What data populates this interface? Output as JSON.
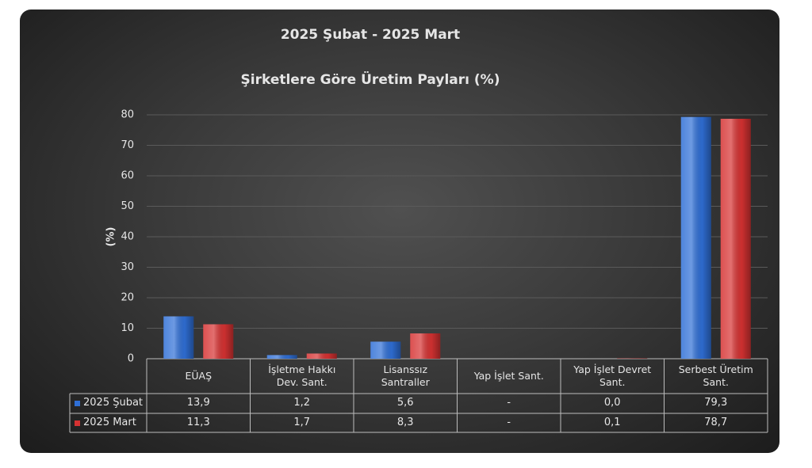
{
  "chart_data": {
    "type": "bar",
    "title": "2025 Şubat - 2025 Mart",
    "subtitle": "Şirketlere Göre Üretim Payları (%)",
    "y_label": "(%)",
    "categories": [
      "EÜAŞ",
      "İşletme Hakkı Dev. Sant.",
      "Lisanssız Santraller",
      "Yap İşlet Sant.",
      "Yap İşlet Devret Sant.",
      "Serbest Üretim Sant."
    ],
    "series": [
      {
        "name": "2025 Şubat",
        "color": "#2f6fd6",
        "values": [
          13.9,
          1.2,
          5.6,
          null,
          0.0,
          79.3
        ],
        "value_labels": [
          "13,9",
          "1,2",
          "5,6",
          "-",
          "0,0",
          "79,3"
        ]
      },
      {
        "name": "2025 Mart",
        "color": "#d63232",
        "values": [
          11.3,
          1.7,
          8.3,
          null,
          0.1,
          78.7
        ],
        "value_labels": [
          "11,3",
          "1,7",
          "8,3",
          "-",
          "0,1",
          "78,7"
        ]
      }
    ],
    "ylim": [
      0,
      80
    ],
    "yticks": [
      0,
      10,
      20,
      30,
      40,
      50,
      60,
      70,
      80
    ],
    "grid": true
  }
}
